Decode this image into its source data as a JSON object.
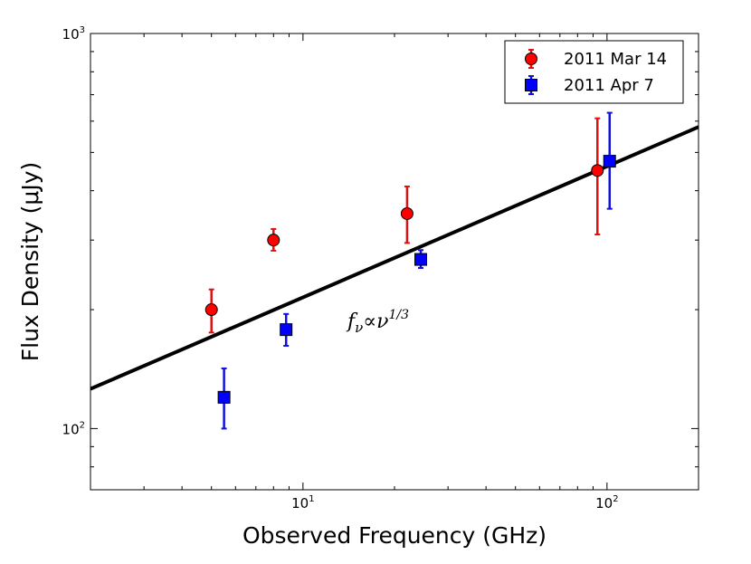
{
  "chart_data": {
    "type": "scatter",
    "title": "",
    "xlabel": "Observed Frequency (GHz)",
    "ylabel": "Flux Density (μJy)",
    "xscale": "log",
    "yscale": "log",
    "xlim": [
      2,
      200
    ],
    "ylim": [
      70,
      1000
    ],
    "grid": false,
    "legend_position": "top-right",
    "xticks": [
      {
        "base": "10",
        "exp": "1",
        "value": 10
      },
      {
        "base": "10",
        "exp": "2",
        "value": 100
      }
    ],
    "yticks": [
      {
        "base": "10",
        "exp": "2",
        "value": 100
      },
      {
        "base": "10",
        "exp": "3",
        "value": 1000
      }
    ],
    "series": [
      {
        "name": "2011 Mar 14",
        "marker": "circle",
        "color": "#ff0000",
        "errorbar_color": "#dd1111",
        "points": [
          {
            "x": 5.0,
            "y": 200,
            "lo": 175,
            "hi": 225
          },
          {
            "x": 8.0,
            "y": 300,
            "lo": 282,
            "hi": 320
          },
          {
            "x": 22.0,
            "y": 350,
            "lo": 295,
            "hi": 410
          },
          {
            "x": 93.0,
            "y": 450,
            "lo": 310,
            "hi": 610
          }
        ]
      },
      {
        "name": "2011 Apr 7",
        "marker": "square",
        "color": "#0000ff",
        "errorbar_color": "#1111dd",
        "points": [
          {
            "x": 5.5,
            "y": 120,
            "lo": 100,
            "hi": 142
          },
          {
            "x": 8.8,
            "y": 178,
            "lo": 162,
            "hi": 195
          },
          {
            "x": 24.4,
            "y": 268,
            "lo": 255,
            "hi": 283
          },
          {
            "x": 102.0,
            "y": 475,
            "lo": 360,
            "hi": 630
          }
        ]
      }
    ],
    "model_line": {
      "x": [
        2,
        200
      ],
      "y": [
        126,
        580
      ],
      "color": "#000000"
    },
    "annotation": {
      "base": "f",
      "sub": "ν",
      "mid": "∝ν",
      "sup": "1/3",
      "x": 14.0,
      "y": 180
    }
  }
}
